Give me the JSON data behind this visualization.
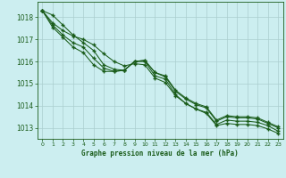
{
  "bg_color": "#cceef0",
  "grid_color": "#aacece",
  "line_color": "#1a5c1a",
  "title": "Graphe pression niveau de la mer (hPa)",
  "xlim": [
    -0.5,
    23.5
  ],
  "ylim": [
    1012.5,
    1018.7
  ],
  "yticks": [
    1013,
    1014,
    1015,
    1016,
    1017,
    1018
  ],
  "xticks": [
    0,
    1,
    2,
    3,
    4,
    5,
    6,
    7,
    8,
    9,
    10,
    11,
    12,
    13,
    14,
    15,
    16,
    17,
    18,
    19,
    20,
    21,
    22,
    23
  ],
  "line1": [
    1018.3,
    1018.1,
    1017.65,
    1017.2,
    1016.85,
    1016.5,
    1015.85,
    1015.65,
    1015.6,
    1016.0,
    1016.0,
    1015.35,
    1015.2,
    1014.5,
    1014.1,
    1013.85,
    1013.7,
    1013.15,
    1013.35,
    1013.3,
    1013.3,
    1013.25,
    1013.1,
    1012.85
  ],
  "line2": [
    1018.3,
    1017.65,
    1017.2,
    1016.85,
    1016.65,
    1016.15,
    1015.7,
    1015.55,
    1015.6,
    1016.0,
    1016.05,
    1015.5,
    1015.3,
    1014.65,
    1014.3,
    1014.05,
    1013.9,
    1013.3,
    1013.5,
    1013.45,
    1013.45,
    1013.4,
    1013.2,
    1013.0
  ],
  "line3": [
    1018.3,
    1017.55,
    1017.1,
    1016.65,
    1016.4,
    1015.85,
    1015.55,
    1015.55,
    1015.6,
    1016.0,
    1016.05,
    1015.5,
    1015.35,
    1014.7,
    1014.35,
    1014.1,
    1013.95,
    1013.35,
    1013.55,
    1013.5,
    1013.5,
    1013.45,
    1013.25,
    1013.05
  ],
  "line4": [
    1018.3,
    1017.75,
    1017.4,
    1017.15,
    1017.0,
    1016.75,
    1016.35,
    1016.0,
    1015.8,
    1015.9,
    1015.85,
    1015.25,
    1015.05,
    1014.45,
    1014.1,
    1013.85,
    1013.65,
    1013.1,
    1013.2,
    1013.15,
    1013.15,
    1013.1,
    1012.95,
    1012.75
  ]
}
